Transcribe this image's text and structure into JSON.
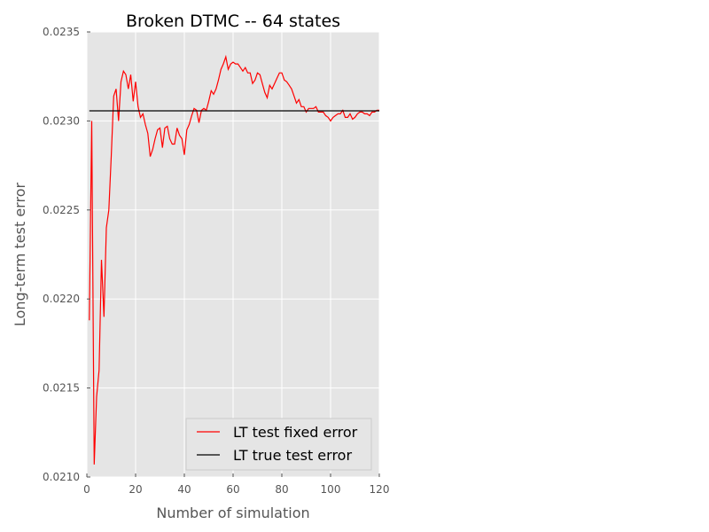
{
  "chart_data": {
    "type": "line",
    "title": "Broken DTMC -- 64 states",
    "xlabel": "Number of simulation",
    "ylabel": "Long-term test error",
    "xlim": [
      0,
      120
    ],
    "ylim": [
      0.021,
      0.0235
    ],
    "x_ticks": [
      0,
      20,
      40,
      60,
      80,
      100,
      120
    ],
    "y_ticks": [
      "0.0210",
      "0.0215",
      "0.0220",
      "0.0225",
      "0.0230",
      "0.0235"
    ],
    "grid": true,
    "legend_position": "bottom-right",
    "colors": {
      "fixed": "#ff0000",
      "true": "#000000",
      "plot_bg": "#e5e5e5",
      "grid": "#ffffff"
    },
    "series": [
      {
        "name": "LT test fixed error",
        "color": "#ff0000",
        "x": [
          1,
          2,
          3,
          4,
          5,
          6,
          7,
          8,
          9,
          10,
          11,
          12,
          13,
          14,
          15,
          16,
          17,
          18,
          19,
          20,
          21,
          22,
          23,
          24,
          25,
          26,
          27,
          28,
          29,
          30,
          31,
          32,
          33,
          34,
          35,
          36,
          37,
          38,
          39,
          40,
          41,
          42,
          43,
          44,
          45,
          46,
          47,
          48,
          49,
          50,
          51,
          52,
          53,
          54,
          55,
          56,
          57,
          58,
          59,
          60,
          61,
          62,
          63,
          64,
          65,
          66,
          67,
          68,
          69,
          70,
          71,
          72,
          73,
          74,
          75,
          76,
          77,
          78,
          79,
          80,
          81,
          82,
          83,
          84,
          85,
          86,
          87,
          88,
          89,
          90,
          91,
          92,
          93,
          94,
          95,
          96,
          97,
          98,
          99,
          100,
          101,
          102,
          103,
          104,
          105,
          106,
          107,
          108,
          109,
          110,
          111,
          112,
          113,
          114,
          115,
          116,
          117,
          118,
          119,
          120
        ],
        "values": [
          0.02188,
          0.023,
          0.02107,
          0.02145,
          0.0216,
          0.02222,
          0.0219,
          0.0224,
          0.0225,
          0.0228,
          0.02314,
          0.02318,
          0.023,
          0.02322,
          0.02328,
          0.02326,
          0.02318,
          0.02326,
          0.02311,
          0.02322,
          0.02308,
          0.02302,
          0.02304,
          0.02298,
          0.02293,
          0.0228,
          0.02284,
          0.0229,
          0.02295,
          0.02296,
          0.02285,
          0.02296,
          0.02297,
          0.0229,
          0.02287,
          0.02287,
          0.02296,
          0.02292,
          0.0229,
          0.02281,
          0.02295,
          0.02298,
          0.02303,
          0.02307,
          0.02306,
          0.02299,
          0.02306,
          0.02307,
          0.02306,
          0.02311,
          0.02317,
          0.02315,
          0.02318,
          0.02323,
          0.02329,
          0.02332,
          0.02336,
          0.02329,
          0.02332,
          0.02333,
          0.02332,
          0.02332,
          0.0233,
          0.02328,
          0.0233,
          0.02327,
          0.02327,
          0.02321,
          0.02323,
          0.02327,
          0.02326,
          0.02321,
          0.02316,
          0.02313,
          0.0232,
          0.02318,
          0.02321,
          0.02324,
          0.02327,
          0.02327,
          0.02323,
          0.02322,
          0.0232,
          0.02318,
          0.02314,
          0.0231,
          0.02312,
          0.02308,
          0.02308,
          0.02305,
          0.02307,
          0.02307,
          0.02307,
          0.02308,
          0.02305,
          0.02305,
          0.02305,
          0.02303,
          0.02302,
          0.023,
          0.02302,
          0.02303,
          0.02304,
          0.02304,
          0.02306,
          0.02302,
          0.02302,
          0.02304,
          0.02301,
          0.02302,
          0.02304,
          0.02305,
          0.02305,
          0.02304,
          0.02304,
          0.02303,
          0.02305,
          0.02305,
          0.02306,
          0.02306
        ]
      },
      {
        "name": "LT true test error",
        "color": "#000000",
        "x": [
          1,
          120
        ],
        "values": [
          0.023057,
          0.023057
        ]
      }
    ]
  }
}
